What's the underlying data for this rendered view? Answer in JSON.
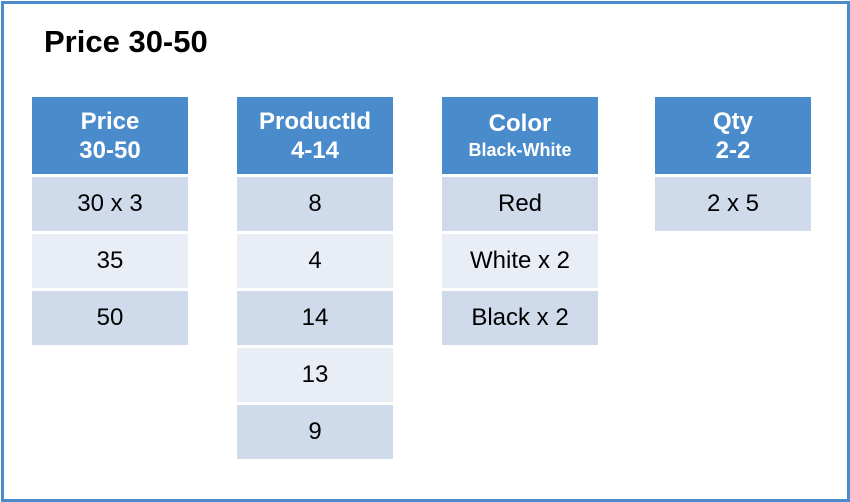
{
  "title": "Price 30-50",
  "colors": {
    "header": "#4a8ccb",
    "row_dark": "#cfdaeb",
    "row_light": "#e8edf6",
    "border": "#4a8ccb"
  },
  "columns": [
    {
      "name": "Price",
      "range": "30-50",
      "values": [
        "30 x 3",
        "35",
        "50"
      ]
    },
    {
      "name": "ProductId",
      "range": "4-14",
      "values": [
        "8",
        "4",
        "14",
        "13",
        "9"
      ]
    },
    {
      "name": "Color",
      "range": "Black-White",
      "values": [
        "Red",
        "White x 2",
        "Black x 2"
      ]
    },
    {
      "name": "Qty",
      "range": "2-2",
      "values": [
        "2 x 5"
      ]
    }
  ]
}
